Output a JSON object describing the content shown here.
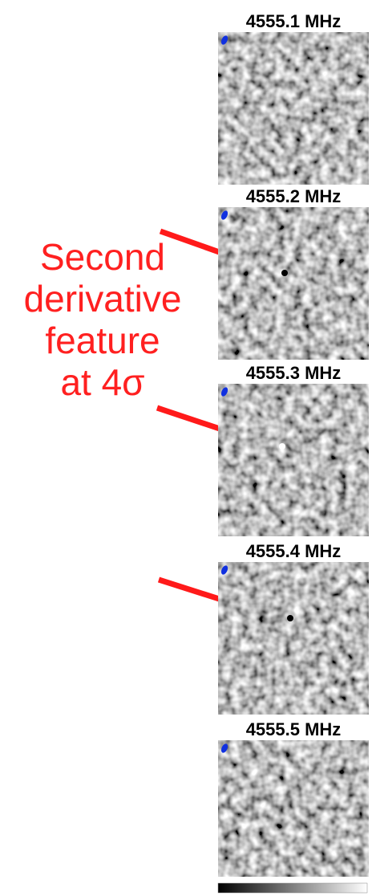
{
  "panels": [
    {
      "title": "4555.1 MHz"
    },
    {
      "title": "4555.2 MHz"
    },
    {
      "title": "4555.3 MHz"
    },
    {
      "title": "4555.4 MHz"
    },
    {
      "title": "4555.5 MHz"
    }
  ],
  "annotation": {
    "lines": [
      "Second",
      "derivative",
      "feature",
      "at 4σ"
    ]
  }
}
